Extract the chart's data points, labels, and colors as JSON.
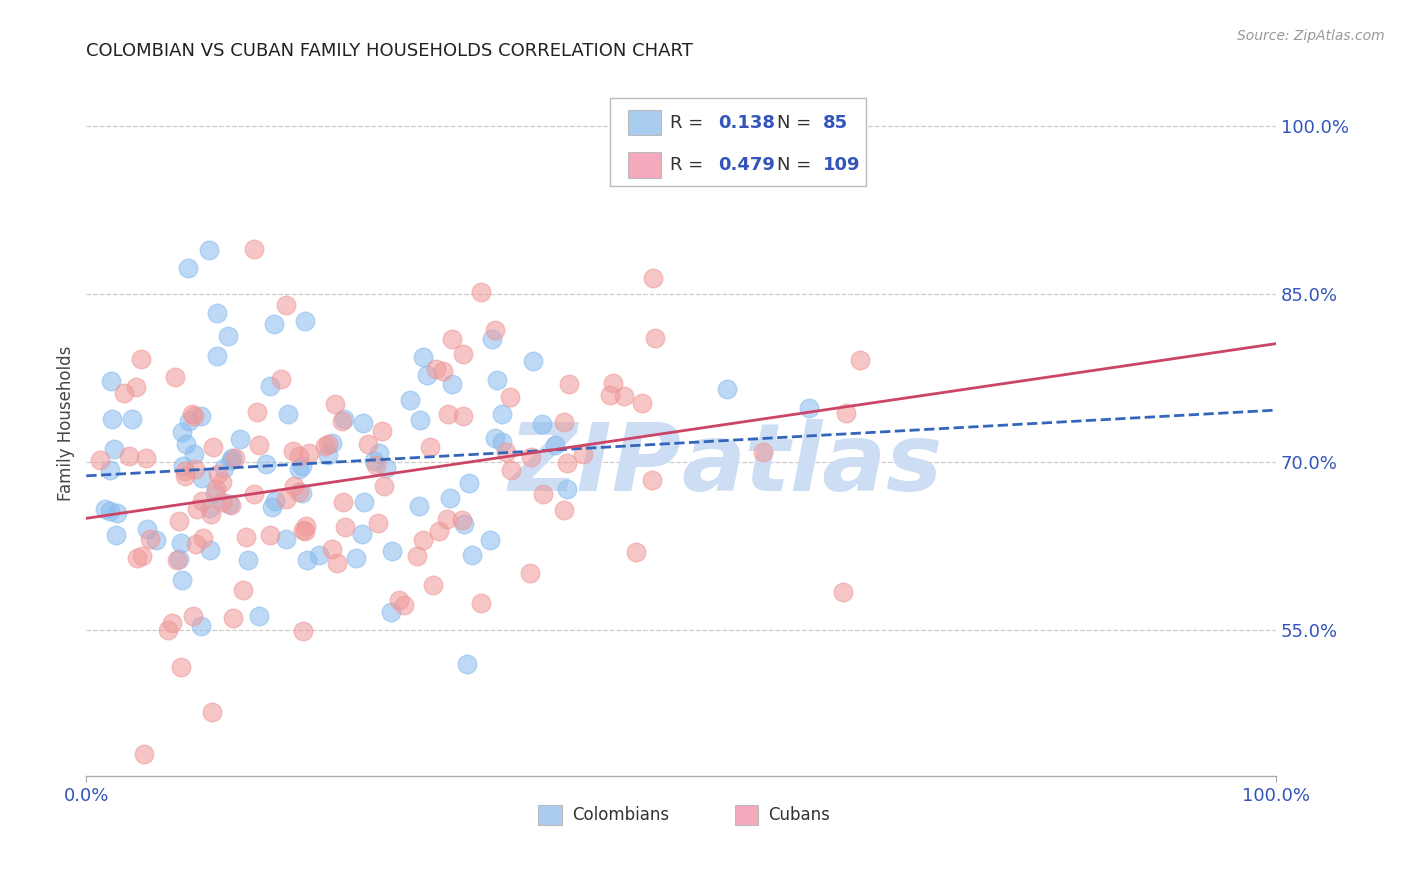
{
  "title": "COLOMBIAN VS CUBAN FAMILY HOUSEHOLDS CORRELATION CHART",
  "source": "Source: ZipAtlas.com",
  "ylabel": "Family Households",
  "ytick_labels": [
    "55.0%",
    "70.0%",
    "85.0%",
    "100.0%"
  ],
  "ytick_values": [
    0.55,
    0.7,
    0.85,
    1.0
  ],
  "xtick_labels": [
    "0.0%",
    "100.0%"
  ],
  "xtick_values": [
    0.0,
    1.0
  ],
  "xmin": 0.0,
  "xmax": 1.0,
  "ymin": 0.42,
  "ymax": 1.05,
  "r_colombian": 0.138,
  "n_colombian": 85,
  "r_cuban": 0.479,
  "n_cuban": 109,
  "color_colombian": "#88BBEE",
  "color_cuban": "#F09898",
  "color_trendline_colombian": "#3366BB",
  "color_trendline_cuban": "#CC4466",
  "color_axis_labels": "#3355BB",
  "color_grid": "#CCCCCC",
  "legend_box_color_colombian": "#AACCEE",
  "legend_box_color_cuban": "#F4AABC",
  "watermark_color": "#CCDDF4",
  "bottom_legend_labels": [
    "Colombians",
    "Cubans"
  ],
  "legend_r_values": [
    "0.138",
    "0.479"
  ],
  "legend_n_values": [
    "85",
    "109"
  ]
}
